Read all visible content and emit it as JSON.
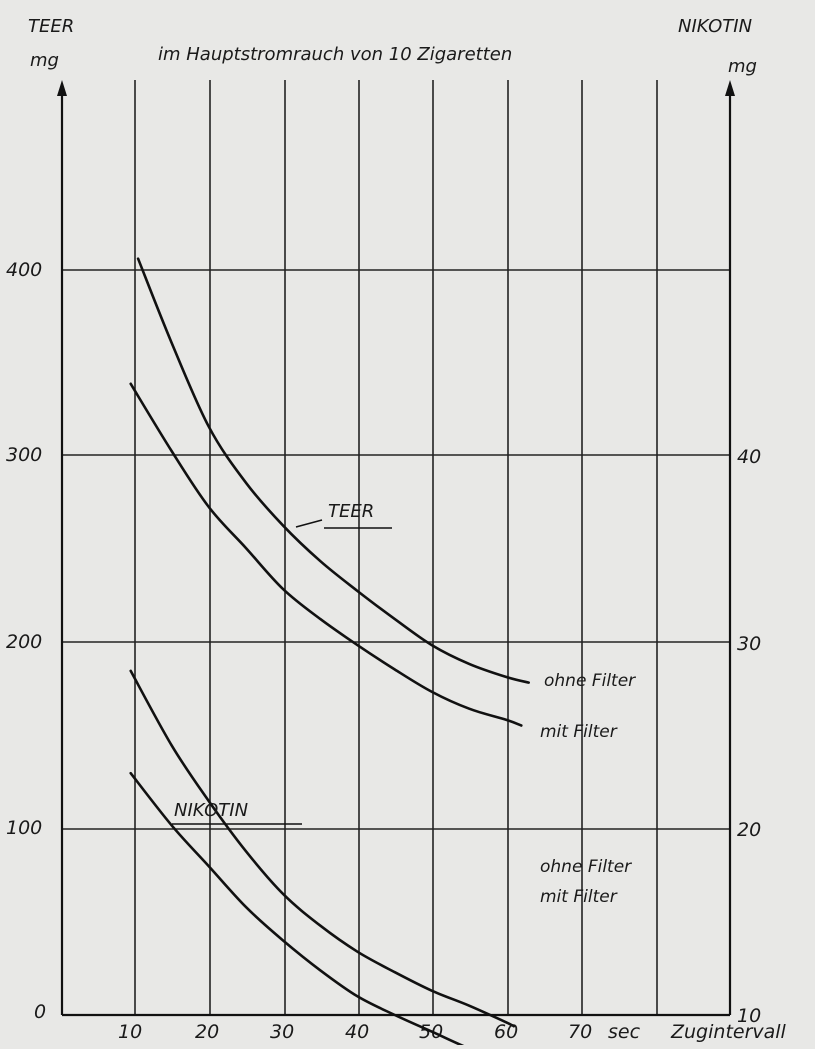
{
  "chart_data": {
    "type": "line",
    "title": "im Hauptstromrauch von 10 Zigaretten",
    "y_left_label": "TEER",
    "y_left_unit": "mg",
    "y_right_label": "NIKOTIN",
    "y_right_unit": "mg",
    "x_unit": "sec",
    "xlabel": "Zugintervall",
    "xlim": [
      0,
      80
    ],
    "ylim_left": [
      0,
      400
    ],
    "ylim_right": [
      10,
      40
    ],
    "x_ticks": [
      "10",
      "20",
      "30",
      "40",
      "50",
      "60",
      "70"
    ],
    "y_left_ticks": [
      "0",
      "100",
      "200",
      "300",
      "400"
    ],
    "y_right_ticks": [
      "10",
      "20",
      "30",
      "40"
    ],
    "grid": true,
    "annotations": {
      "teer_label": "TEER",
      "nikotin_label": "NIKOTIN"
    },
    "series": [
      {
        "group": "TEER",
        "name": "ohne Filter",
        "axis": "left",
        "x": [
          10.5,
          15,
          20,
          25,
          30,
          35,
          40,
          45,
          50,
          55,
          60,
          63
        ],
        "y": [
          405,
          360,
          315,
          285,
          262,
          243,
          227,
          212,
          198,
          188,
          181,
          178
        ]
      },
      {
        "group": "TEER",
        "name": "mit Filter",
        "axis": "left",
        "x": [
          9.5,
          15,
          20,
          25,
          30,
          35,
          40,
          45,
          50,
          55,
          60,
          62
        ],
        "y": [
          338,
          302,
          272,
          250,
          228,
          212,
          198,
          185,
          173,
          164,
          158,
          155
        ]
      },
      {
        "group": "NIKOTIN",
        "name": "ohne Filter",
        "axis": "right",
        "x": [
          9.5,
          15,
          20,
          25,
          30,
          35,
          40,
          45,
          50,
          55,
          60,
          61
        ],
        "y": [
          28.5,
          24.5,
          21.5,
          18.8,
          16.5,
          14.8,
          13.4,
          12.3,
          11.3,
          10.5,
          9.6,
          9.4
        ]
      },
      {
        "group": "NIKOTIN",
        "name": "mit Filter",
        "axis": "right",
        "x": [
          9.5,
          15,
          20,
          25,
          30,
          35,
          40,
          45,
          50,
          55,
          60,
          61
        ],
        "y": [
          23,
          20.2,
          18.0,
          15.8,
          14.0,
          12.4,
          11.0,
          10.0,
          9.1,
          8.2,
          7.5,
          7.3
        ]
      }
    ],
    "legend_labels": {
      "teer_ohne": "ohne Filter",
      "teer_mit": "mit Filter",
      "nik_ohne": "ohne Filter",
      "nik_mit": "mit Filter"
    }
  }
}
